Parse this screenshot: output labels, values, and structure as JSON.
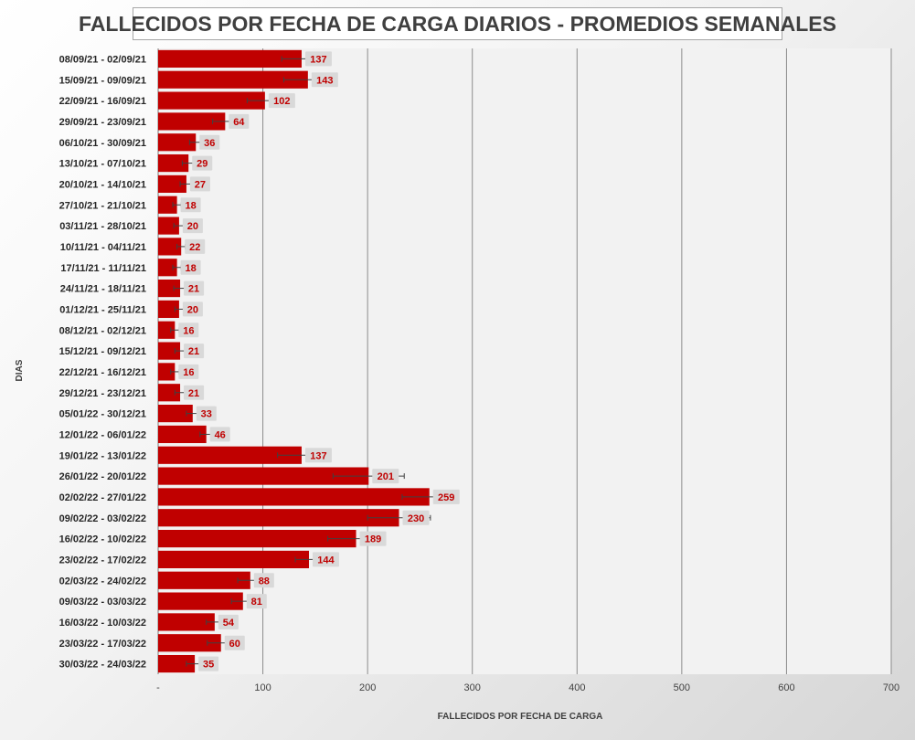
{
  "chart_data": {
    "type": "bar",
    "orientation": "horizontal",
    "title": "FALLECIDOS POR FECHA DE CARGA DIARIOS - PROMEDIOS SEMANALES",
    "xlabel": "FALLECIDOS POR FECHA DE CARGA",
    "ylabel": "DIAS",
    "xlim": [
      0,
      700
    ],
    "x_ticks": [
      "-",
      "100",
      "200",
      "300",
      "400",
      "500",
      "600",
      "700"
    ],
    "grid": true,
    "bar_color": "#c00000",
    "label_color": "#c00000",
    "categories": [
      "08/09/21 - 02/09/21",
      "15/09/21 - 09/09/21",
      "22/09/21 - 16/09/21",
      "29/09/21 - 23/09/21",
      "06/10/21 - 30/09/21",
      "13/10/21 - 07/10/21",
      "20/10/21 - 14/10/21",
      "27/10/21 - 21/10/21",
      "03/11/21 - 28/10/21",
      "10/11/21 - 04/11/21",
      "17/11/21 - 11/11/21",
      "24/11/21 - 18/11/21",
      "01/12/21 - 25/11/21",
      "08/12/21 - 02/12/21",
      "15/12/21 - 09/12/21",
      "22/12/21 - 16/12/21",
      "29/12/21 - 23/12/21",
      "05/01/22 - 30/12/21",
      "12/01/22 - 06/01/22",
      "19/01/22 - 13/01/22",
      "26/01/22 - 20/01/22",
      "02/02/22 - 27/01/22",
      "09/02/22 - 03/02/22",
      "16/02/22 - 10/02/22",
      "23/02/22 - 17/02/22",
      "02/03/22 - 24/02/22",
      "09/03/22 - 03/03/22",
      "16/03/22 - 10/03/22",
      "23/03/22 - 17/03/22",
      "30/03/22 - 24/03/22"
    ],
    "values": [
      137,
      143,
      102,
      64,
      36,
      29,
      27,
      18,
      20,
      22,
      18,
      21,
      20,
      16,
      21,
      16,
      21,
      33,
      46,
      137,
      201,
      259,
      230,
      189,
      144,
      88,
      81,
      54,
      60,
      35
    ],
    "error_ranges": [
      [
        118,
        156
      ],
      [
        120,
        166
      ],
      [
        85,
        119
      ],
      [
        52,
        76
      ],
      [
        30,
        42
      ],
      [
        23,
        35
      ],
      [
        21,
        33
      ],
      [
        14,
        22
      ],
      [
        15,
        25
      ],
      [
        18,
        26
      ],
      [
        14,
        22
      ],
      [
        15,
        27
      ],
      [
        16,
        24
      ],
      [
        12,
        20
      ],
      [
        16,
        26
      ],
      [
        12,
        20
      ],
      [
        16,
        26
      ],
      [
        27,
        39
      ],
      [
        40,
        52
      ],
      [
        114,
        160
      ],
      [
        167,
        235
      ],
      [
        233,
        285
      ],
      [
        200,
        260
      ],
      [
        162,
        216
      ],
      [
        131,
        157
      ],
      [
        76,
        100
      ],
      [
        70,
        92
      ],
      [
        46,
        62
      ],
      [
        47,
        73
      ],
      [
        27,
        43
      ]
    ]
  }
}
